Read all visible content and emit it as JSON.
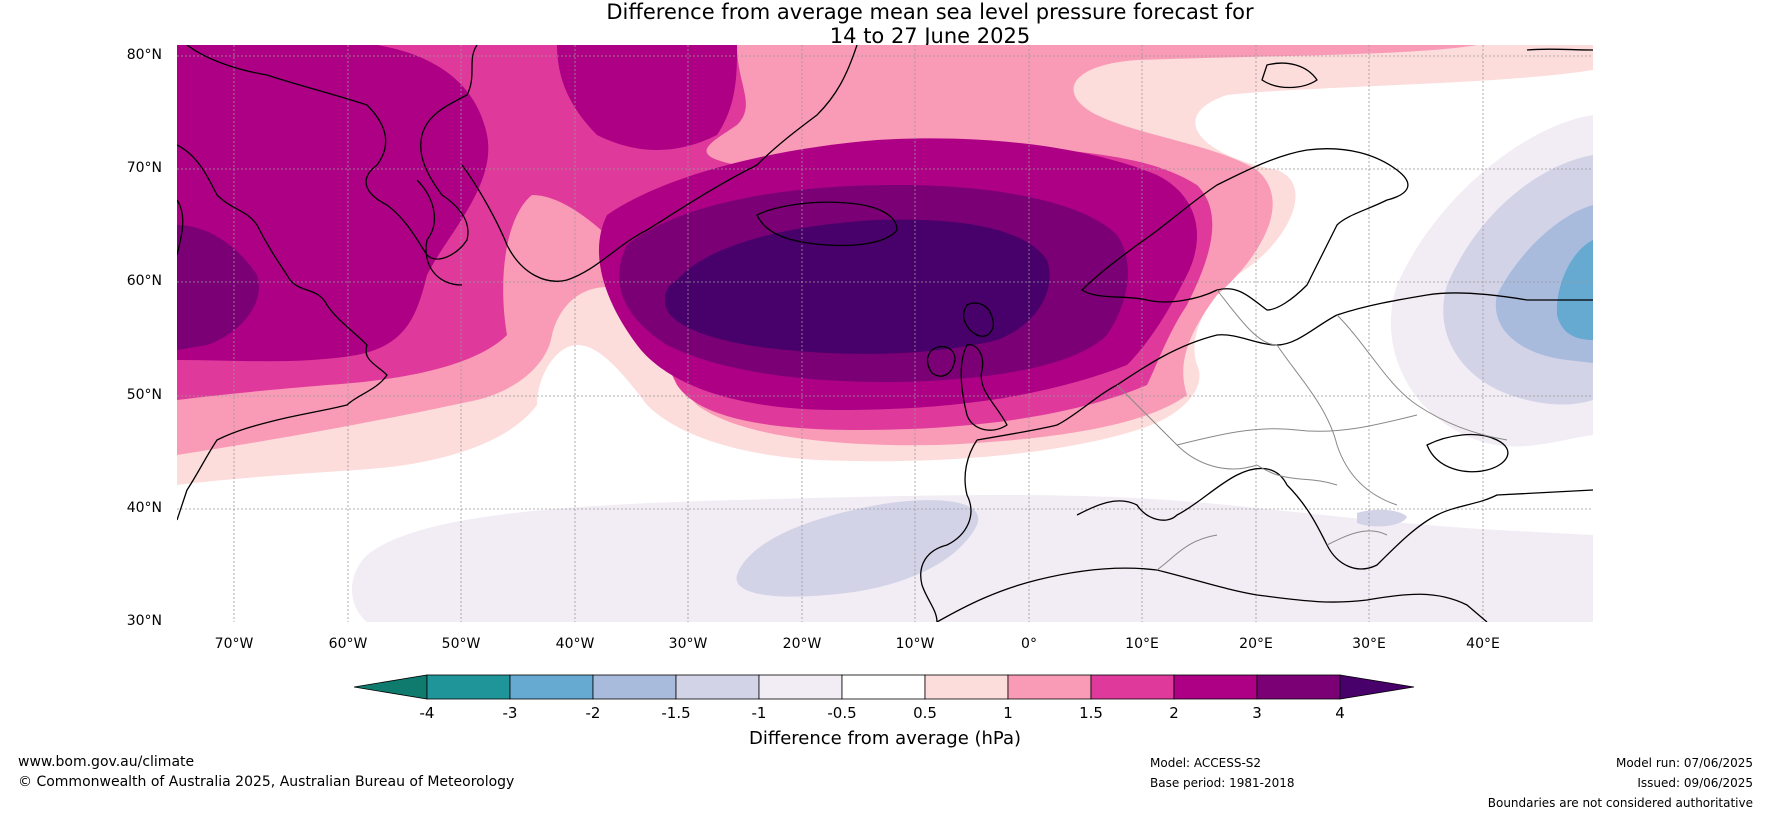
{
  "title_line1": "Difference from average mean sea level pressure forecast for",
  "title_line2": "14 to 27 June 2025",
  "lat_labels": [
    "80°N",
    "70°N",
    "60°N",
    "50°N",
    "40°N",
    "30°N"
  ],
  "lon_labels": [
    "70°W",
    "60°W",
    "50°W",
    "40°W",
    "30°W",
    "20°W",
    "10°W",
    "0°",
    "10°E",
    "20°E",
    "30°E",
    "40°E"
  ],
  "colorbar": {
    "ticks": [
      "-4",
      "-3",
      "-2",
      "-1.5",
      "-1",
      "-0.5",
      "0.5",
      "1",
      "1.5",
      "2",
      "3",
      "4"
    ],
    "colors": [
      "#0f7b6e",
      "#1f9599",
      "#66a9d1",
      "#a8bbdd",
      "#d3d3e8",
      "#f2ecf4",
      "#ffffff",
      "#fddcdc",
      "#f99bb6",
      "#df3a9b",
      "#ad0085",
      "#7b0075",
      "#48006a"
    ],
    "label": "Difference from average (hPa)"
  },
  "map_colors": {
    "pos_05": "#fddcdc",
    "pos_1": "#f99bb6",
    "pos_15": "#df3a9b",
    "pos_2": "#ad0085",
    "pos_3": "#7b0075",
    "pos_4": "#48006a",
    "neg_05": "#f2ecf4",
    "neg_1": "#d3d3e8",
    "neg_15": "#a8bbdd",
    "neg_2": "#66a9d1"
  },
  "footer": {
    "website": "www.bom.gov.au/climate",
    "copyright": "© Commonwealth of Australia 2025, Australian Bureau of Meteorology",
    "model": "Model: ACCESS-S2",
    "base_period": "Base period: 1981-2018",
    "model_run": "Model run: 07/06/2025",
    "issued": "Issued: 09/06/2025",
    "disclaimer": "Boundaries are not considered authoritative"
  }
}
